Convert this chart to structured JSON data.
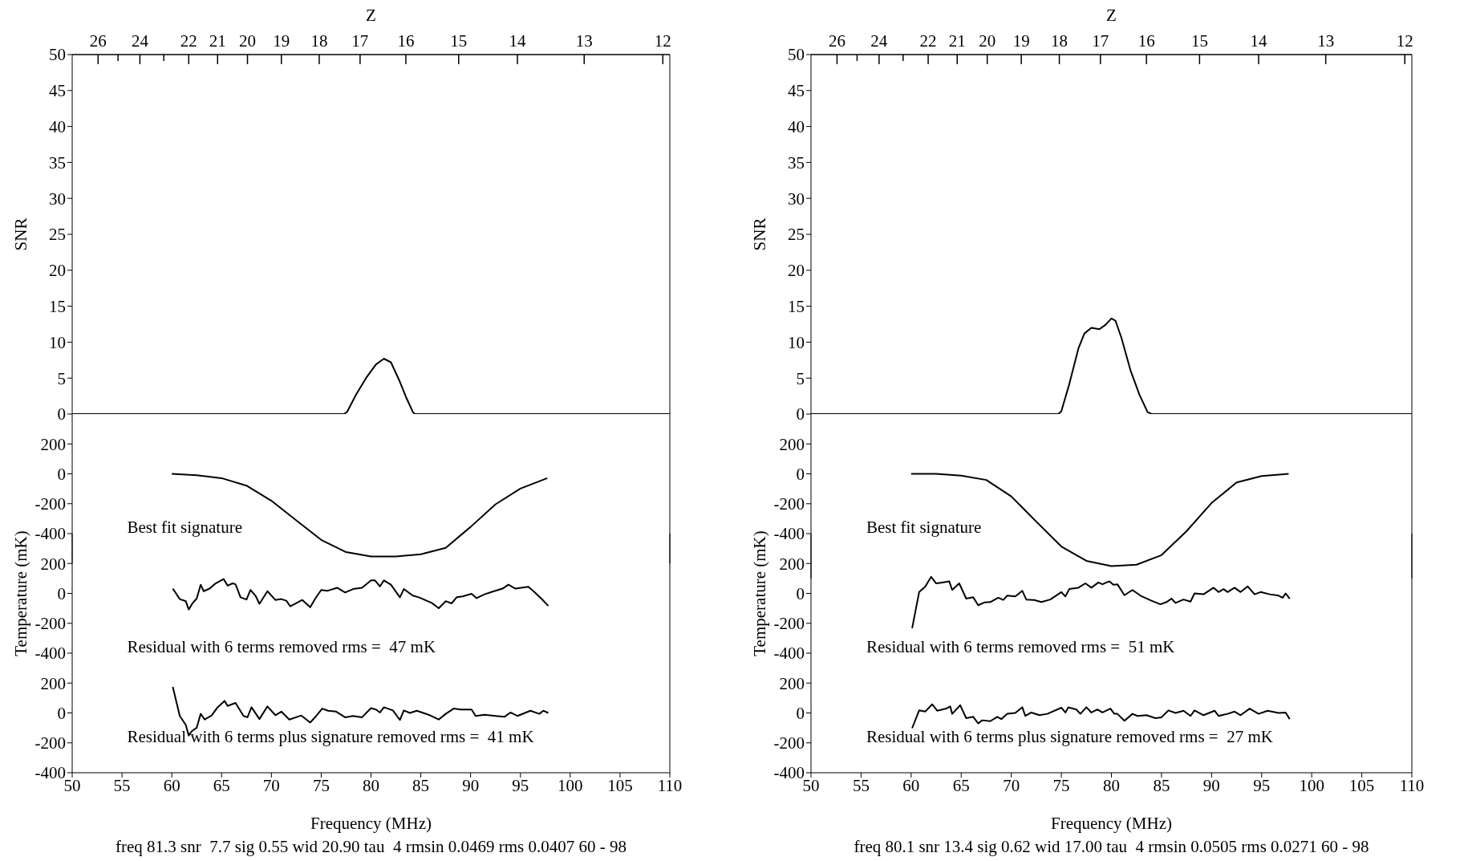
{
  "chart_data": [
    {
      "type": "line",
      "ylabel": "SNR",
      "x2label": "Z",
      "xlim": [
        50,
        110
      ],
      "ylim": [
        0,
        50
      ],
      "yticks": [
        0,
        5,
        10,
        15,
        20,
        25,
        30,
        35,
        40,
        45,
        50
      ],
      "tick_labels": "y",
      "color": "#000000",
      "annotations": [
        "26",
        "24",
        "22",
        "21",
        "20",
        "19",
        "18",
        "17",
        "16",
        "15",
        "14",
        "13",
        "12"
      ],
      "x": [
        50,
        77.3,
        77.6,
        78.5,
        79.5,
        80.5,
        81.3,
        82,
        82.8,
        83.5,
        84.2,
        84.4,
        110
      ],
      "values": [
        0,
        0,
        0.3,
        2.7,
        5.0,
        6.9,
        7.7,
        7.2,
        4.8,
        2.4,
        0.3,
        0,
        0
      ]
    },
    {
      "type": "line",
      "xlim": [
        50,
        110
      ],
      "ylim": [
        -600,
        400
      ],
      "yticks": [
        -400,
        -200,
        0,
        200
      ],
      "tick_labels": "y",
      "color": "#000000",
      "annotations": [
        "Best fit signature"
      ],
      "x": [
        60,
        62.5,
        65,
        67.5,
        70,
        72.5,
        75,
        77.5,
        80,
        82.5,
        85,
        87.5,
        90,
        92.5,
        95,
        97.7
      ],
      "values": [
        0,
        -9,
        -29,
        -79,
        -180,
        -311,
        -442,
        -524,
        -553,
        -553,
        -538,
        -495,
        -355,
        -204,
        -99,
        -29
      ]
    },
    {
      "type": "line",
      "xlim": [
        50,
        110
      ],
      "ylim": [
        -400,
        400
      ],
      "yticks": [
        -400,
        -200,
        0,
        200
      ],
      "tick_labels": "y",
      "ylabel": "Temperature (mK)",
      "color": "#000000",
      "annotations": [
        "Residual with 6 terms removed rms =  47 mK"
      ],
      "x": [
        60.1,
        60.8,
        61.4,
        61.7,
        62.1,
        62.5,
        62.9,
        63.2,
        63.8,
        64.4,
        65.2,
        65.6,
        66.1,
        66.4,
        66.9,
        67.5,
        67.9,
        68.4,
        68.8,
        69.6,
        70.4,
        71.0,
        71.5,
        71.9,
        73.1,
        73.9,
        74.4,
        75.0,
        75.6,
        76.6,
        77.4,
        78.2,
        79.1,
        80.0,
        80.4,
        80.9,
        81.3,
        82.0,
        82.9,
        83.3,
        84.2,
        84.8,
        86.1,
        86.8,
        87.5,
        88.1,
        88.6,
        89.2,
        90.1,
        90.6,
        91.4,
        92.1,
        93.2,
        93.8,
        94.5,
        95.8,
        96.4,
        97.1,
        97.8
      ],
      "values": [
        32,
        -38,
        -52,
        -108,
        -64,
        -35,
        58,
        15,
        32,
        67,
        96,
        52,
        67,
        61,
        -26,
        -41,
        23,
        -15,
        -70,
        15,
        -44,
        -38,
        -49,
        -87,
        -44,
        -93,
        -35,
        23,
        17,
        38,
        6,
        29,
        38,
        87,
        87,
        47,
        87,
        58,
        -26,
        29,
        -15,
        -26,
        -64,
        -99,
        -52,
        -67,
        -26,
        -20,
        -3,
        -32,
        -6,
        9,
        32,
        58,
        32,
        44,
        9,
        -35,
        -84
      ]
    },
    {
      "type": "line",
      "xlim": [
        50,
        110
      ],
      "ylim": [
        -400,
        400
      ],
      "yticks": [
        -400,
        -200,
        0,
        200
      ],
      "xticks": [
        50,
        55,
        60,
        65,
        70,
        75,
        80,
        85,
        90,
        95,
        100,
        105,
        110
      ],
      "xlabel": "Frequency (MHz)",
      "color": "#000000",
      "annotations": [
        "Residual with 6 terms plus signature removed rms =  41 mK",
        "freq 81.3 snr  7.7 sig 0.55 wid 20.90 tau  4 rmsin 0.0469 rms 0.0407 60 - 98"
      ],
      "x": [
        60.1,
        60.8,
        61.4,
        61.7,
        62.0,
        62.5,
        62.9,
        63.3,
        64.0,
        64.6,
        65.3,
        65.6,
        66.4,
        67.2,
        67.6,
        68.0,
        68.8,
        69.6,
        70.4,
        71.0,
        71.8,
        73.0,
        73.9,
        74.5,
        75.1,
        75.7,
        76.5,
        77.4,
        78.2,
        79.1,
        80.0,
        80.5,
        80.9,
        81.3,
        82.2,
        82.9,
        83.3,
        83.9,
        84.6,
        85.9,
        86.8,
        87.5,
        88.3,
        89.0,
        90.1,
        90.5,
        91.4,
        92.5,
        93.4,
        94.0,
        94.7,
        96.0,
        96.9,
        97.3,
        97.8
      ],
      "values": [
        175,
        -20,
        -79,
        -151,
        -122,
        -99,
        -6,
        -44,
        -17,
        38,
        81,
        47,
        67,
        -20,
        -29,
        38,
        -41,
        44,
        -15,
        9,
        -44,
        -17,
        -64,
        -20,
        29,
        15,
        9,
        -29,
        -20,
        -29,
        32,
        23,
        3,
        38,
        17,
        -47,
        17,
        0,
        15,
        -15,
        -44,
        -6,
        29,
        23,
        23,
        -20,
        -12,
        -20,
        -26,
        3,
        -20,
        15,
        -6,
        15,
        0
      ]
    },
    {
      "type": "line",
      "ylabel": "SNR",
      "x2label": "Z",
      "xlim": [
        50,
        110
      ],
      "ylim": [
        0,
        50
      ],
      "yticks": [
        0,
        5,
        10,
        15,
        20,
        25,
        30,
        35,
        40,
        45,
        50
      ],
      "tick_labels": "y",
      "color": "#000000",
      "annotations": [
        "26",
        "24",
        "22",
        "21",
        "20",
        "19",
        "18",
        "17",
        "16",
        "15",
        "14",
        "13",
        "12"
      ],
      "x": [
        50,
        74.7,
        75.0,
        75.8,
        76.7,
        77.3,
        78.0,
        78.8,
        79.4,
        80.0,
        80.4,
        81.0,
        81.9,
        82.8,
        83.6,
        84.0,
        110
      ],
      "values": [
        0,
        0,
        0.4,
        4.2,
        9.1,
        11.2,
        12.0,
        11.8,
        12.4,
        13.3,
        13.0,
        10.6,
        6.1,
        2.7,
        0.3,
        0,
        0
      ]
    },
    {
      "type": "line",
      "xlim": [
        50,
        110
      ],
      "ylim": [
        -700,
        400
      ],
      "yticks": [
        -400,
        -200,
        0,
        200
      ],
      "tick_labels": "y",
      "color": "#000000",
      "annotations": [
        "Best fit signature"
      ],
      "x": [
        60,
        62.5,
        65,
        67.5,
        70,
        72.5,
        75,
        77.5,
        80,
        82.5,
        85,
        87.5,
        90,
        92.5,
        95,
        97.7
      ],
      "values": [
        0,
        0,
        -12,
        -41,
        -151,
        -320,
        -486,
        -582,
        -617,
        -608,
        -544,
        -384,
        -195,
        -58,
        -15,
        0
      ]
    },
    {
      "type": "line",
      "xlim": [
        50,
        110
      ],
      "ylim": [
        -400,
        400
      ],
      "yticks": [
        -400,
        -200,
        0,
        200
      ],
      "tick_labels": "y",
      "ylabel": "Temperature (mK)",
      "color": "#000000",
      "annotations": [
        "Residual with 6 terms removed rms =  51 mK"
      ],
      "x": [
        60.1,
        60.8,
        61.4,
        62.0,
        62.5,
        63.1,
        63.8,
        64.1,
        64.8,
        65.5,
        66.2,
        66.7,
        67.3,
        67.9,
        68.7,
        69.2,
        69.6,
        70.4,
        71.1,
        71.5,
        72.3,
        73.0,
        73.9,
        75.0,
        75.4,
        75.8,
        76.7,
        77.4,
        78.0,
        78.7,
        79.1,
        79.8,
        80.2,
        80.6,
        81.3,
        82.1,
        82.9,
        84.0,
        84.9,
        85.5,
        86.0,
        86.4,
        87.2,
        87.9,
        88.3,
        89.2,
        90.2,
        90.7,
        91.2,
        91.6,
        92.3,
        92.9,
        93.6,
        94.3,
        94.9,
        95.8,
        96.7,
        97.1,
        97.4,
        97.8
      ],
      "values": [
        -233,
        9,
        44,
        111,
        67,
        73,
        81,
        23,
        67,
        -35,
        -26,
        -79,
        -61,
        -58,
        -29,
        -44,
        -15,
        -20,
        17,
        -41,
        -44,
        -58,
        -41,
        9,
        -20,
        29,
        38,
        67,
        38,
        73,
        61,
        81,
        58,
        61,
        -12,
        23,
        -15,
        -49,
        -73,
        -58,
        -35,
        -64,
        -41,
        -55,
        0,
        -6,
        38,
        9,
        29,
        9,
        38,
        9,
        47,
        -6,
        9,
        -6,
        -15,
        -29,
        0,
        -35
      ]
    },
    {
      "type": "line",
      "xlim": [
        50,
        110
      ],
      "ylim": [
        -400,
        400
      ],
      "yticks": [
        -400,
        -200,
        0,
        200
      ],
      "xticks": [
        50,
        55,
        60,
        65,
        70,
        75,
        80,
        85,
        90,
        95,
        100,
        105,
        110
      ],
      "xlabel": "Frequency (MHz)",
      "color": "#000000",
      "annotations": [
        "Residual with 6 terms plus signature removed rms =  27 mK",
        "freq 80.1 snr 13.4 sig 0.62 wid 17.00 tau  4 rmsin 0.0505 rms 0.0271 60 - 98"
      ],
      "x": [
        60.1,
        60.8,
        61.4,
        62.1,
        62.6,
        63.5,
        63.9,
        64.1,
        64.9,
        65.5,
        66.2,
        66.7,
        67.1,
        67.9,
        68.6,
        69.0,
        69.6,
        70.4,
        71.1,
        71.4,
        72.0,
        72.8,
        73.6,
        75.0,
        75.4,
        75.7,
        76.5,
        76.9,
        77.5,
        78.0,
        78.6,
        79.1,
        79.9,
        80.3,
        80.6,
        81.3,
        82.1,
        82.6,
        83.5,
        84.4,
        85.0,
        85.7,
        86.4,
        87.2,
        87.9,
        88.3,
        89.2,
        90.3,
        90.7,
        91.6,
        92.3,
        92.9,
        93.8,
        94.7,
        95.6,
        96.7,
        97.4,
        97.8
      ],
      "values": [
        -102,
        17,
        9,
        58,
        15,
        29,
        44,
        -6,
        52,
        -35,
        -26,
        -70,
        -49,
        -55,
        -26,
        -41,
        -6,
        0,
        38,
        -20,
        3,
        -15,
        -6,
        35,
        3,
        38,
        23,
        -6,
        38,
        3,
        23,
        3,
        29,
        -6,
        -6,
        -52,
        -6,
        -20,
        -15,
        -35,
        -29,
        17,
        0,
        15,
        -20,
        17,
        -15,
        15,
        -20,
        -6,
        9,
        -15,
        29,
        -6,
        15,
        0,
        3,
        -41
      ]
    }
  ]
}
